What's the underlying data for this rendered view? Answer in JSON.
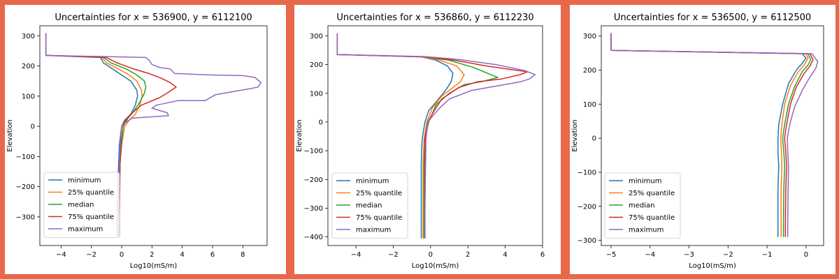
{
  "colors": {
    "background_frame": "#e8684a",
    "minimum": "#1f77b4",
    "q25": "#ff7f0e",
    "median": "#2ca02c",
    "q75": "#d62728",
    "maximum": "#9467bd"
  },
  "chart_data": [
    {
      "type": "line",
      "title": "Uncertainties for x = 536900, y = 6112100",
      "xlabel": "Log10(mS/m)",
      "ylabel": "Elevation",
      "xlim": [
        -5.4,
        9.6
      ],
      "ylim": [
        -395,
        333
      ],
      "xticks": [
        -4,
        -2,
        0,
        2,
        4,
        6,
        8
      ],
      "yticks": [
        -300,
        -200,
        -100,
        0,
        100,
        200,
        300
      ],
      "legend": "lower-left",
      "grid": false,
      "series": [
        {
          "name": "minimum",
          "color_key": "minimum",
          "x": [
            -5.0,
            -5.0,
            -1.4,
            -1.2,
            -0.6,
            0.0,
            0.6,
            1.0,
            1.05,
            0.9,
            0.6,
            0.2,
            0.0,
            -0.15,
            -0.2,
            -0.25,
            -0.3,
            -0.3
          ],
          "y": [
            308,
            235,
            228,
            210,
            190,
            170,
            150,
            120,
            100,
            70,
            40,
            15,
            0,
            -60,
            -120,
            -200,
            -300,
            -365
          ]
        },
        {
          "name": "25% quantile",
          "color_key": "q25",
          "x": [
            -5.0,
            -5.0,
            -1.3,
            -1.0,
            -0.2,
            0.5,
            1.0,
            1.3,
            1.35,
            1.2,
            0.9,
            0.5,
            0.2,
            0.0,
            -0.1,
            -0.2,
            -0.25,
            -0.25
          ],
          "y": [
            308,
            235,
            228,
            210,
            190,
            170,
            150,
            120,
            100,
            70,
            40,
            20,
            0,
            -60,
            -120,
            -200,
            -300,
            -365
          ]
        },
        {
          "name": "median",
          "color_key": "median",
          "x": [
            -5.0,
            -5.0,
            -1.2,
            -0.7,
            0.3,
            1.0,
            1.5,
            1.6,
            1.5,
            1.2,
            0.8,
            0.4,
            0.1,
            0.0,
            -0.1,
            -0.15,
            -0.2,
            -0.2
          ],
          "y": [
            308,
            235,
            228,
            210,
            190,
            170,
            150,
            130,
            110,
            80,
            50,
            25,
            0,
            -60,
            -120,
            -200,
            -300,
            -365
          ]
        },
        {
          "name": "75% quantile",
          "color_key": "q75",
          "x": [
            -5.0,
            -5.0,
            -1.0,
            -0.3,
            0.8,
            1.8,
            2.6,
            3.2,
            3.6,
            3.0,
            2.5,
            1.3,
            0.6,
            0.2,
            0.0,
            -0.05,
            -0.1,
            -0.15,
            -0.15
          ],
          "y": [
            308,
            235,
            228,
            210,
            190,
            175,
            160,
            145,
            130,
            110,
            95,
            70,
            40,
            20,
            0,
            -60,
            -120,
            -300,
            -365
          ]
        },
        {
          "name": "maximum",
          "color_key": "maximum",
          "x": [
            -5.0,
            -5.0,
            1.6,
            1.8,
            2.0,
            2.5,
            3.2,
            3.5,
            4.5,
            5.0,
            6.0,
            8.0,
            8.8,
            9.2,
            9.0,
            8.5,
            6.2,
            5.5,
            3.7,
            2.3,
            2.0,
            3.0,
            3.1,
            0.7,
            0.5,
            0.2,
            0.0,
            -0.1,
            -0.15,
            -0.2,
            -0.2
          ],
          "y": [
            308,
            235,
            228,
            220,
            205,
            195,
            190,
            175,
            173,
            172,
            170,
            168,
            162,
            145,
            130,
            125,
            105,
            85,
            85,
            70,
            60,
            45,
            35,
            27,
            20,
            10,
            0,
            -60,
            -120,
            -300,
            -365
          ]
        }
      ]
    },
    {
      "type": "line",
      "title": "Uncertainties for x = 536860, y = 6112230",
      "xlabel": "Log10(mS/m)",
      "ylabel": "Elevation",
      "xlim": [
        -5.5,
        6.0
      ],
      "ylim": [
        -430,
        335
      ],
      "xticks": [
        -4,
        -2,
        0,
        2,
        4,
        6
      ],
      "yticks": [
        -400,
        -300,
        -200,
        -100,
        0,
        100,
        200,
        300
      ],
      "legend": "lower-left",
      "grid": false,
      "series": [
        {
          "name": "minimum",
          "color_key": "minimum",
          "x": [
            -5.0,
            -5.0,
            -0.5,
            0.3,
            0.9,
            1.2,
            1.1,
            0.8,
            0.3,
            -0.1,
            -0.3,
            -0.45,
            -0.5,
            -0.5,
            -0.5
          ],
          "y": [
            308,
            235,
            227,
            215,
            195,
            170,
            140,
            110,
            70,
            40,
            0,
            -60,
            -150,
            -300,
            -405
          ]
        },
        {
          "name": "25% quantile",
          "color_key": "q25",
          "x": [
            -5.0,
            -5.0,
            -0.5,
            0.5,
            1.4,
            1.8,
            1.6,
            1.2,
            0.6,
            0.1,
            -0.2,
            -0.35,
            -0.4,
            -0.4,
            -0.4
          ],
          "y": [
            308,
            235,
            227,
            215,
            195,
            165,
            140,
            120,
            90,
            50,
            0,
            -60,
            -150,
            -300,
            -405
          ]
        },
        {
          "name": "median",
          "color_key": "median",
          "x": [
            -5.0,
            -5.0,
            -0.4,
            1.0,
            2.3,
            3.6,
            2.7,
            1.8,
            1.0,
            0.3,
            -0.1,
            -0.3,
            -0.35,
            -0.35,
            -0.35
          ],
          "y": [
            308,
            235,
            227,
            215,
            190,
            155,
            140,
            130,
            100,
            60,
            0,
            -60,
            -150,
            -300,
            -405
          ]
        },
        {
          "name": "75% quantile",
          "color_key": "q75",
          "x": [
            -5.0,
            -5.0,
            -0.3,
            1.3,
            3.0,
            4.6,
            5.2,
            4.8,
            3.8,
            2.5,
            1.5,
            0.6,
            0.2,
            -0.15,
            -0.3,
            -0.3,
            -0.3
          ],
          "y": [
            308,
            235,
            227,
            215,
            195,
            180,
            175,
            165,
            150,
            140,
            120,
            80,
            40,
            0,
            -60,
            -300,
            -405
          ]
        },
        {
          "name": "maximum",
          "color_key": "maximum",
          "x": [
            -5.0,
            -5.0,
            -0.3,
            1.5,
            3.5,
            5.0,
            5.6,
            5.3,
            4.8,
            3.5,
            2.2,
            1.0,
            0.5,
            0.1,
            -0.15,
            -0.25,
            -0.3,
            -0.3
          ],
          "y": [
            308,
            235,
            228,
            218,
            200,
            180,
            165,
            150,
            140,
            125,
            110,
            80,
            50,
            20,
            0,
            -60,
            -300,
            -405
          ]
        }
      ]
    },
    {
      "type": "line",
      "title": "Uncertainties for x = 536500, y = 6112500",
      "xlabel": "Log10(mS/m)",
      "ylabel": "Elevation",
      "xlim": [
        -5.25,
        0.45
      ],
      "ylim": [
        -315,
        330
      ],
      "xticks": [
        -5,
        -4,
        -3,
        -2,
        -1,
        0
      ],
      "yticks": [
        -300,
        -200,
        -100,
        0,
        100,
        200,
        300
      ],
      "legend": "lower-left",
      "grid": false,
      "series": [
        {
          "name": "minimum",
          "color_key": "minimum",
          "x": [
            -5.0,
            -5.0,
            -0.1,
            0.0,
            -0.1,
            -0.25,
            -0.45,
            -0.6,
            -0.7,
            -0.72,
            -0.72,
            -0.7,
            -0.72,
            -0.72,
            -0.72
          ],
          "y": [
            308,
            258,
            248,
            235,
            220,
            200,
            160,
            100,
            40,
            0,
            -40,
            -80,
            -150,
            -250,
            -290
          ]
        },
        {
          "name": "25% quantile",
          "color_key": "q25",
          "x": [
            -5.0,
            -5.0,
            0.0,
            0.05,
            -0.05,
            -0.2,
            -0.4,
            -0.55,
            -0.62,
            -0.65,
            -0.63,
            -0.62,
            -0.64,
            -0.64,
            -0.64
          ],
          "y": [
            308,
            258,
            248,
            235,
            215,
            195,
            155,
            100,
            40,
            0,
            -40,
            -80,
            -150,
            -250,
            -290
          ]
        },
        {
          "name": "median",
          "color_key": "median",
          "x": [
            -5.0,
            -5.0,
            0.05,
            0.12,
            0.05,
            -0.1,
            -0.3,
            -0.45,
            -0.55,
            -0.6,
            -0.57,
            -0.55,
            -0.57,
            -0.58,
            -0.58
          ],
          "y": [
            308,
            258,
            248,
            230,
            215,
            195,
            150,
            100,
            40,
            0,
            -40,
            -80,
            -150,
            -250,
            -290
          ]
        },
        {
          "name": "75% quantile",
          "color_key": "q75",
          "x": [
            -5.0,
            -5.0,
            0.1,
            0.18,
            0.1,
            -0.05,
            -0.25,
            -0.4,
            -0.5,
            -0.55,
            -0.52,
            -0.5,
            -0.52,
            -0.53,
            -0.53
          ],
          "y": [
            308,
            258,
            248,
            230,
            212,
            190,
            150,
            100,
            40,
            0,
            -40,
            -80,
            -150,
            -250,
            -290
          ]
        },
        {
          "name": "maximum",
          "color_key": "maximum",
          "x": [
            -5.0,
            -5.0,
            0.15,
            0.3,
            0.25,
            0.1,
            -0.1,
            -0.3,
            -0.42,
            -0.48,
            -0.47,
            -0.45,
            -0.46,
            -0.47,
            -0.47
          ],
          "y": [
            308,
            258,
            248,
            225,
            205,
            180,
            140,
            90,
            40,
            0,
            -40,
            -80,
            -150,
            -250,
            -290
          ]
        }
      ]
    }
  ]
}
